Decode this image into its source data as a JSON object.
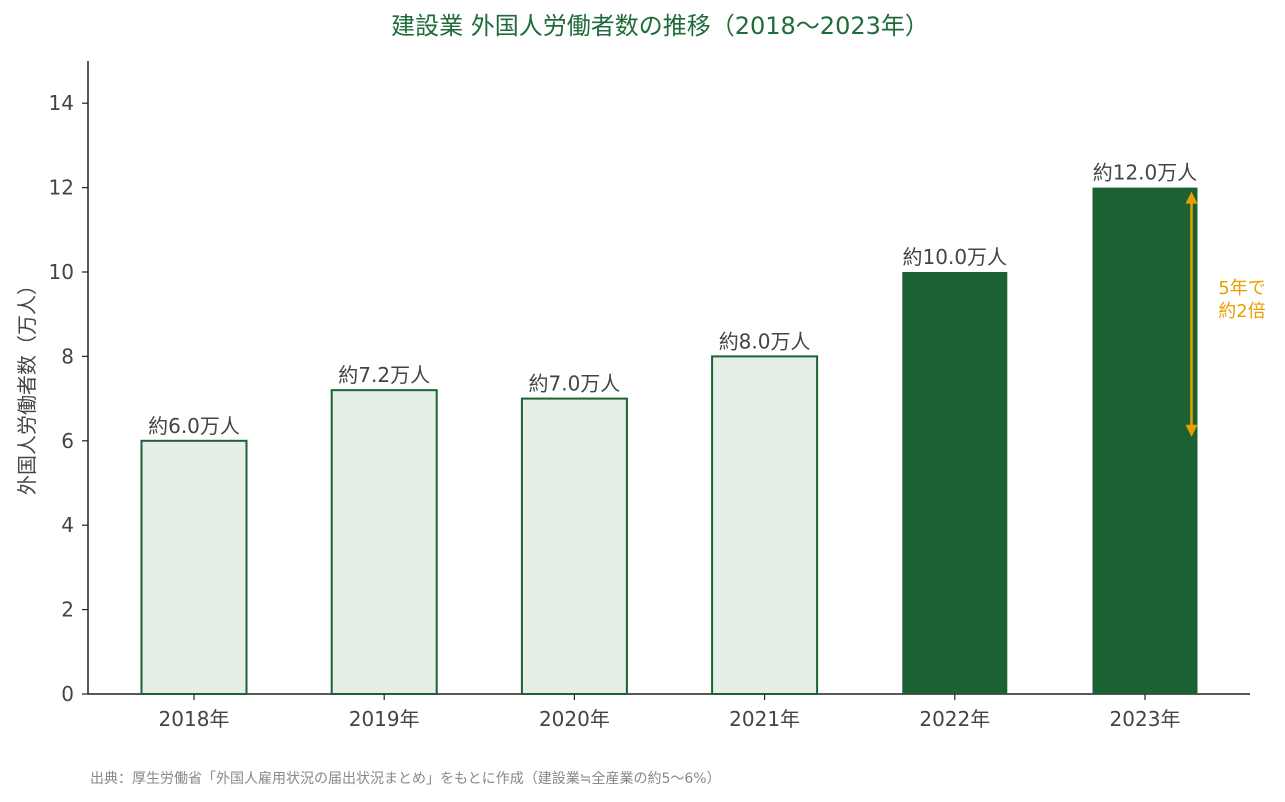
{
  "chart_data": {
    "type": "bar",
    "title": "建設業 外国人労働者数の推移（2018〜2023年）",
    "xlabel": "",
    "ylabel": "外国人労働者数（万人）",
    "ylim": [
      0,
      15
    ],
    "yticks": [
      0,
      2,
      4,
      6,
      8,
      10,
      12,
      14
    ],
    "categories": [
      "2018年",
      "2019年",
      "2020年",
      "2021年",
      "2022年",
      "2023年"
    ],
    "values": [
      6.0,
      7.2,
      7.0,
      8.0,
      10.0,
      12.0
    ],
    "data_labels": [
      "約6.0万人",
      "約7.2万人",
      "約7.0万人",
      "約8.0万人",
      "約10.0万人",
      "約12.0万人"
    ],
    "highlight": [
      false,
      false,
      false,
      false,
      true,
      true
    ],
    "grid": false,
    "annotation": {
      "lines": [
        "5年で",
        "約2倍"
      ],
      "from_value": 6.0,
      "to_value": 12.0
    },
    "source": "出典：厚生労働省「外国人雇用状況の届出状況まとめ」をもとに作成（建設業≒全産業の約5〜6%）"
  },
  "colors": {
    "dark_fill": "#1c6134",
    "light_fill": "#e6efe7",
    "edge": "#1c6134",
    "title": "#1f6b3a",
    "axis": "#222222",
    "annotation": "#e8a000"
  }
}
